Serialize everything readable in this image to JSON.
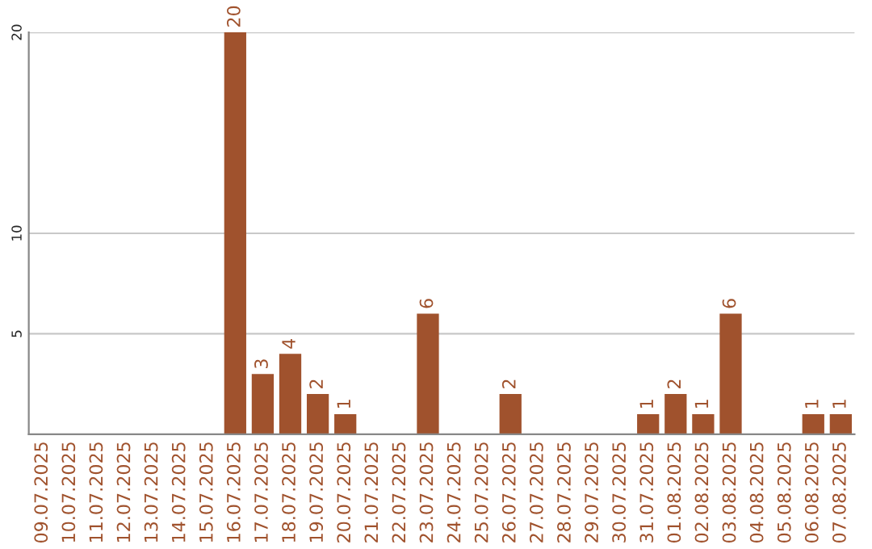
{
  "chart_data": {
    "type": "bar",
    "categories": [
      "09.07.2025",
      "10.07.2025",
      "11.07.2025",
      "12.07.2025",
      "13.07.2025",
      "14.07.2025",
      "15.07.2025",
      "16.07.2025",
      "17.07.2025",
      "18.07.2025",
      "19.07.2025",
      "20.07.2025",
      "21.07.2025",
      "22.07.2025",
      "23.07.2025",
      "24.07.2025",
      "25.07.2025",
      "26.07.2025",
      "27.07.2025",
      "28.07.2025",
      "29.07.2025",
      "30.07.2025",
      "31.07.2025",
      "01.08.2025",
      "02.08.2025",
      "03.08.2025",
      "04.08.2025",
      "05.08.2025",
      "06.08.2025",
      "07.08.2025"
    ],
    "values": [
      0,
      0,
      0,
      0,
      0,
      0,
      0,
      20,
      3,
      4,
      2,
      1,
      0,
      0,
      6,
      0,
      0,
      2,
      0,
      0,
      0,
      0,
      1,
      2,
      1,
      6,
      0,
      0,
      1,
      1
    ],
    "value_labels": [
      null,
      null,
      null,
      null,
      null,
      null,
      null,
      "20",
      "3",
      "4",
      "2",
      "1",
      null,
      null,
      "6",
      null,
      null,
      "2",
      null,
      null,
      null,
      null,
      "1",
      "2",
      "1",
      "6",
      null,
      null,
      "1",
      "1"
    ],
    "color": "#a0522d",
    "ylim": [
      0,
      20
    ],
    "yticks": [
      5,
      10,
      20
    ],
    "grid": "y",
    "legend": false
  }
}
